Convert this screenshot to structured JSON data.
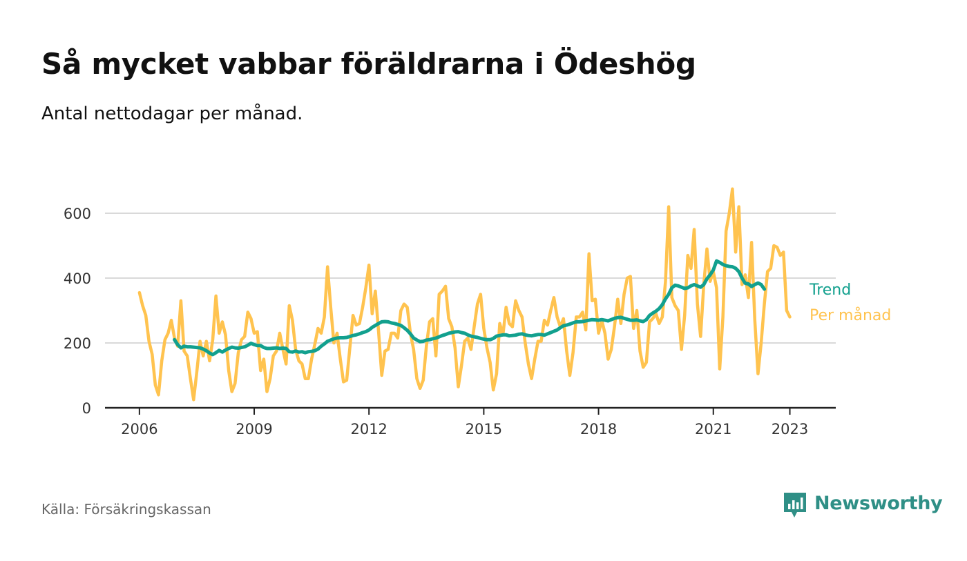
{
  "header": {
    "title": "Så mycket vabbar föräldrarna i Ödeshög",
    "subtitle": "Antal nettodagar per månad."
  },
  "footer": {
    "source": "Källa: Försäkringskassan",
    "brand": "Newsworthy",
    "brand_icon": "newsworthy-logo-icon"
  },
  "colors": {
    "monthly": "#ffc34f",
    "trend": "#12a08e",
    "grid": "#d9d9d9",
    "axis": "#222222",
    "brand": "#2f8f86"
  },
  "chart_data": {
    "type": "line",
    "title": "Så mycket vabbar föräldrarna i Ödeshög",
    "subtitle": "Antal nettodagar per månad.",
    "xlabel": "",
    "ylabel": "",
    "x_range": [
      2005.1,
      2024.2
    ],
    "ylim": [
      0,
      700
    ],
    "x_ticks": [
      2006,
      2009,
      2012,
      2015,
      2018,
      2021,
      2023
    ],
    "y_ticks": [
      0,
      200,
      400,
      600
    ],
    "grid": "horizontal",
    "legend": "inline labels at line ends (right)",
    "series": [
      {
        "name": "Per månad",
        "color": "#ffc34f",
        "start_year": 2006,
        "start_month": 1,
        "values": [
          355,
          315,
          285,
          205,
          165,
          70,
          40,
          145,
          210,
          230,
          270,
          215,
          190,
          330,
          175,
          160,
          90,
          25,
          110,
          205,
          160,
          205,
          145,
          210,
          345,
          230,
          265,
          225,
          115,
          50,
          75,
          170,
          210,
          220,
          295,
          275,
          230,
          235,
          115,
          150,
          50,
          90,
          160,
          175,
          230,
          180,
          135,
          315,
          270,
          180,
          145,
          135,
          90,
          90,
          150,
          195,
          245,
          230,
          280,
          435,
          310,
          200,
          230,
          150,
          80,
          85,
          185,
          285,
          255,
          260,
          310,
          370,
          440,
          290,
          360,
          235,
          100,
          175,
          180,
          230,
          230,
          215,
          300,
          320,
          310,
          230,
          180,
          90,
          60,
          85,
          190,
          265,
          275,
          160,
          350,
          360,
          375,
          275,
          250,
          185,
          65,
          130,
          205,
          215,
          180,
          250,
          320,
          350,
          245,
          185,
          140,
          55,
          105,
          260,
          225,
          310,
          260,
          250,
          330,
          300,
          280,
          200,
          135,
          90,
          150,
          205,
          205,
          270,
          255,
          300,
          340,
          280,
          250,
          275,
          175,
          100,
          170,
          280,
          280,
          295,
          240,
          475,
          330,
          335,
          230,
          270,
          230,
          150,
          180,
          250,
          335,
          260,
          350,
          400,
          405,
          245,
          300,
          175,
          125,
          140,
          265,
          275,
          290,
          260,
          280,
          390,
          620,
          340,
          315,
          300,
          180,
          285,
          470,
          430,
          550,
          320,
          220,
          380,
          490,
          390,
          420,
          370,
          120,
          280,
          545,
          600,
          675,
          480,
          620,
          380,
          410,
          340,
          510,
          270,
          105,
          200,
          320,
          420,
          430,
          500,
          495,
          470,
          480,
          300,
          280
        ]
      },
      {
        "name": "Trend",
        "color": "#12a08e",
        "start_year": 2006,
        "start_month": 12,
        "values": [
          210,
          195,
          185,
          190,
          188,
          188,
          187,
          186,
          185,
          181,
          176,
          169,
          164,
          170,
          177,
          172,
          178,
          183,
          187,
          185,
          184,
          186,
          188,
          193,
          199,
          195,
          192,
          192,
          186,
          183,
          183,
          184,
          185,
          183,
          184,
          183,
          173,
          172,
          175,
          172,
          173,
          170,
          173,
          174,
          176,
          181,
          190,
          197,
          205,
          209,
          213,
          215,
          216,
          216,
          217,
          220,
          223,
          225,
          228,
          232,
          235,
          240,
          248,
          254,
          260,
          265,
          266,
          265,
          262,
          260,
          257,
          254,
          247,
          239,
          228,
          215,
          209,
          204,
          205,
          209,
          210,
          213,
          215,
          219,
          223,
          226,
          230,
          232,
          234,
          235,
          232,
          230,
          225,
          221,
          219,
          217,
          214,
          212,
          210,
          210,
          214,
          221,
          223,
          225,
          225,
          222,
          223,
          224,
          227,
          228,
          225,
          223,
          222,
          224,
          226,
          226,
          224,
          228,
          232,
          236,
          240,
          247,
          253,
          255,
          258,
          262,
          265,
          265,
          266,
          268,
          270,
          272,
          271,
          270,
          272,
          270,
          268,
          272,
          276,
          278,
          279,
          276,
          273,
          270,
          270,
          271,
          268,
          266,
          272,
          285,
          292,
          298,
          306,
          318,
          336,
          350,
          370,
          378,
          376,
          372,
          368,
          370,
          376,
          380,
          376,
          372,
          380,
          398,
          410,
          425,
          453,
          448,
          442,
          438,
          436,
          435,
          430,
          420,
          400,
          384,
          382,
          374,
          380,
          385,
          380,
          366
        ]
      }
    ]
  }
}
